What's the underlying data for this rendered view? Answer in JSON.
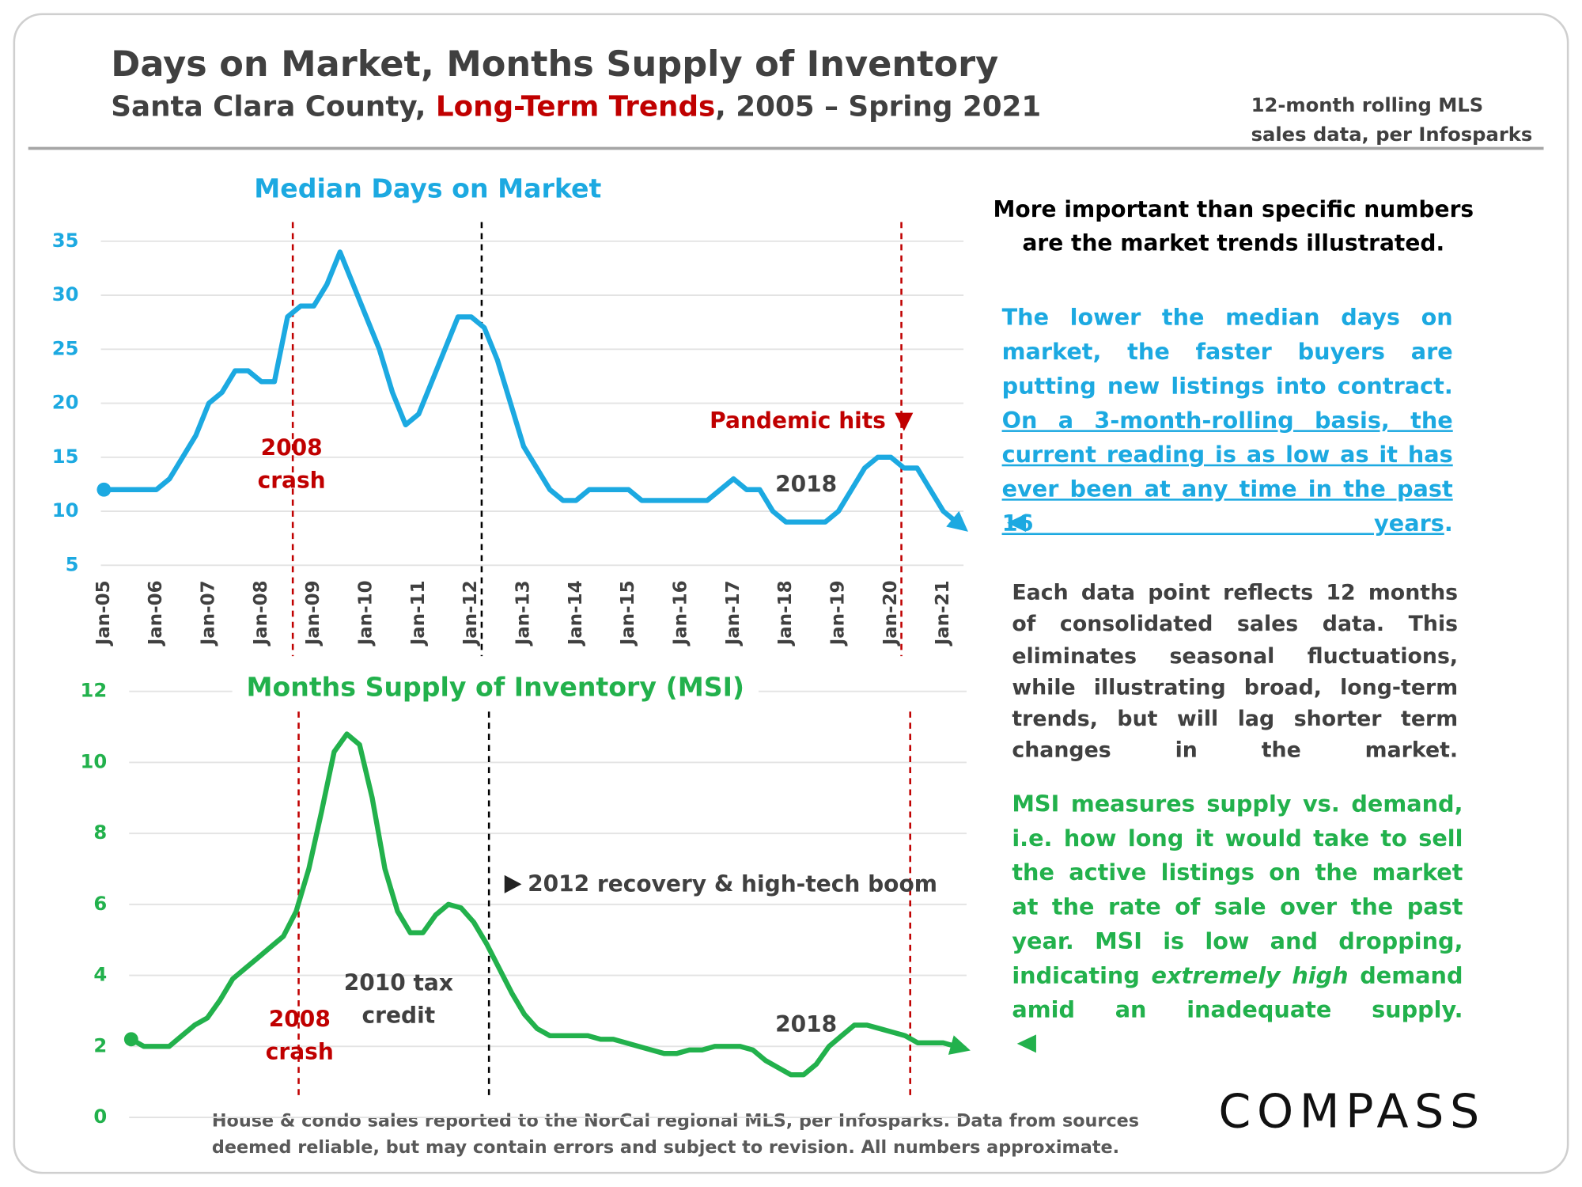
{
  "header": {
    "title": "Days on Market, Months Supply of Inventory",
    "subtitle_a": "Santa Clara County, ",
    "subtitle_b": "Long-Term Trends",
    "subtitle_c": ", 2005 – Spring 2021",
    "source_note": [
      "12-month rolling MLS",
      "sales data, per Infosparks"
    ]
  },
  "chart_data": [
    {
      "type": "line",
      "title": "Median Days on Market",
      "color": "#1ca9e1",
      "x": [
        2005,
        2005.25,
        2005.5,
        2005.75,
        2006,
        2006.25,
        2006.5,
        2006.75,
        2007,
        2007.25,
        2007.5,
        2007.75,
        2008,
        2008.25,
        2008.5,
        2008.75,
        2009,
        2009.25,
        2009.5,
        2009.75,
        2010,
        2010.25,
        2010.5,
        2010.75,
        2011,
        2011.25,
        2011.5,
        2011.75,
        2012,
        2012.25,
        2012.5,
        2012.75,
        2013,
        2013.25,
        2013.5,
        2013.75,
        2014,
        2014.25,
        2014.5,
        2014.75,
        2015,
        2015.25,
        2015.5,
        2015.75,
        2016,
        2016.25,
        2016.5,
        2016.75,
        2017,
        2017.25,
        2017.5,
        2017.75,
        2018,
        2018.25,
        2018.5,
        2018.75,
        2019,
        2019.25,
        2019.5,
        2019.75,
        2020,
        2020.25,
        2020.5,
        2020.75,
        2021,
        2021.25
      ],
      "values": [
        12,
        12,
        12,
        12,
        12,
        13,
        15,
        17,
        20,
        21,
        23,
        23,
        22,
        22,
        28,
        29,
        29,
        31,
        34,
        31,
        28,
        25,
        21,
        18,
        19,
        22,
        25,
        28,
        28,
        27,
        24,
        20,
        16,
        14,
        12,
        11,
        11,
        12,
        12,
        12,
        12,
        11,
        11,
        11,
        11,
        11,
        11,
        12,
        13,
        12,
        12,
        10,
        9,
        9,
        9,
        9,
        10,
        12,
        14,
        15,
        15,
        14,
        14,
        12,
        10,
        9
      ],
      "xlim": [
        2005,
        2021.5
      ],
      "ylim": [
        5,
        35
      ],
      "yticks": [
        5,
        10,
        15,
        20,
        25,
        30,
        35
      ],
      "xticks": [
        {
          "value": 2005,
          "label": "Jan-05"
        },
        {
          "value": 2006,
          "label": "Jan-06"
        },
        {
          "value": 2007,
          "label": "Jan-07"
        },
        {
          "value": 2008,
          "label": "Jan-08"
        },
        {
          "value": 2009,
          "label": "Jan-09"
        },
        {
          "value": 2010,
          "label": "Jan-10"
        },
        {
          "value": 2011,
          "label": "Jan-11"
        },
        {
          "value": 2012,
          "label": "Jan-12"
        },
        {
          "value": 2013,
          "label": "Jan-13"
        },
        {
          "value": 2014,
          "label": "Jan-14"
        },
        {
          "value": 2015,
          "label": "Jan-15"
        },
        {
          "value": 2016,
          "label": "Jan-16"
        },
        {
          "value": 2017,
          "label": "Jan-17"
        },
        {
          "value": 2018,
          "label": "Jan-18"
        },
        {
          "value": 2019,
          "label": "Jan-19"
        },
        {
          "value": 2020,
          "label": "Jan-20"
        },
        {
          "value": 2021,
          "label": "Jan-21"
        }
      ],
      "grid": true,
      "vlines": [
        {
          "x": 2008.6,
          "color": "#c00000"
        },
        {
          "x": 2012.2,
          "color": "#000000"
        },
        {
          "x": 2020.2,
          "color": "#c00000"
        }
      ],
      "annotations": {
        "crash": [
          "2008",
          "crash"
        ],
        "pandemic": "Pandemic hits",
        "year2018": "2018"
      }
    },
    {
      "type": "line",
      "title": "Months Supply of Inventory (MSI)",
      "color": "#22b14c",
      "x": [
        2005,
        2005.25,
        2005.5,
        2005.75,
        2006,
        2006.25,
        2006.5,
        2006.75,
        2007,
        2007.25,
        2007.5,
        2007.75,
        2008,
        2008.25,
        2008.5,
        2008.75,
        2009,
        2009.25,
        2009.5,
        2009.75,
        2010,
        2010.25,
        2010.5,
        2010.75,
        2011,
        2011.25,
        2011.5,
        2011.75,
        2012,
        2012.25,
        2012.5,
        2012.75,
        2013,
        2013.25,
        2013.5,
        2013.75,
        2014,
        2014.25,
        2014.5,
        2014.75,
        2015,
        2015.25,
        2015.5,
        2015.75,
        2016,
        2016.25,
        2016.5,
        2016.75,
        2017,
        2017.25,
        2017.5,
        2017.75,
        2018,
        2018.25,
        2018.5,
        2018.75,
        2019,
        2019.25,
        2019.5,
        2019.75,
        2020,
        2020.25,
        2020.5,
        2020.75,
        2021,
        2021.25
      ],
      "values": [
        2.2,
        2.0,
        2.0,
        2.0,
        2.3,
        2.6,
        2.8,
        3.3,
        3.9,
        4.2,
        4.5,
        4.8,
        5.1,
        5.8,
        7.0,
        8.6,
        10.3,
        10.8,
        10.5,
        9.0,
        7.0,
        5.8,
        5.2,
        5.2,
        5.7,
        6.0,
        5.9,
        5.5,
        4.9,
        4.2,
        3.5,
        2.9,
        2.5,
        2.3,
        2.3,
        2.3,
        2.3,
        2.2,
        2.2,
        2.1,
        2.0,
        1.9,
        1.8,
        1.8,
        1.9,
        1.9,
        2.0,
        2.0,
        2.0,
        1.9,
        1.6,
        1.4,
        1.2,
        1.2,
        1.5,
        2.0,
        2.3,
        2.6,
        2.6,
        2.5,
        2.4,
        2.3,
        2.1,
        2.1,
        2.1,
        2.0
      ],
      "xlim": [
        2005,
        2021.5
      ],
      "ylim": [
        0,
        12
      ],
      "yticks": [
        0,
        2,
        4,
        6,
        8,
        10,
        12
      ],
      "grid": true,
      "vlines": [
        {
          "x": 2008.3,
          "color": "#c00000"
        },
        {
          "x": 2012.05,
          "color": "#000000"
        },
        {
          "x": 2020.35,
          "color": "#c00000"
        }
      ],
      "annotations": {
        "crash": [
          "2008",
          "crash"
        ],
        "tax": [
          "2010 tax",
          "credit"
        ],
        "recovery": "2012 recovery & high-tech boom",
        "year2018": "2018"
      }
    }
  ],
  "sidebar": {
    "intro": [
      "More important than specific numbers",
      "are the market trends illustrated."
    ],
    "dom_text": "The lower the median days on market, the faster buyers are putting new listings into contract. ",
    "dom_underlined": "On a 3-month-rolling basis, the current reading is as low as it has ever been at any time in the past 16 years",
    "dom_end": ".",
    "method": "Each data point reflects 12 months of consolidated sales data. This eliminates seasonal fluctuations, while illustrating broad, long-term trends, but will lag shorter term changes in the market.",
    "msi_text": "MSI measures supply vs. demand, i.e. how long it would take to sell the active listings on the market at the rate of sale over the past year. MSI is low and dropping, indicating ",
    "msi_italic": "extremely high",
    "msi_end": " demand amid an inadequate supply."
  },
  "footer": {
    "note": [
      "House & condo sales reported to the NorCal regional MLS, per Infosparks. Data from sources",
      "deemed reliable, but may contain errors and subject to revision. All numbers approximate."
    ],
    "logo": "COMPASS"
  }
}
